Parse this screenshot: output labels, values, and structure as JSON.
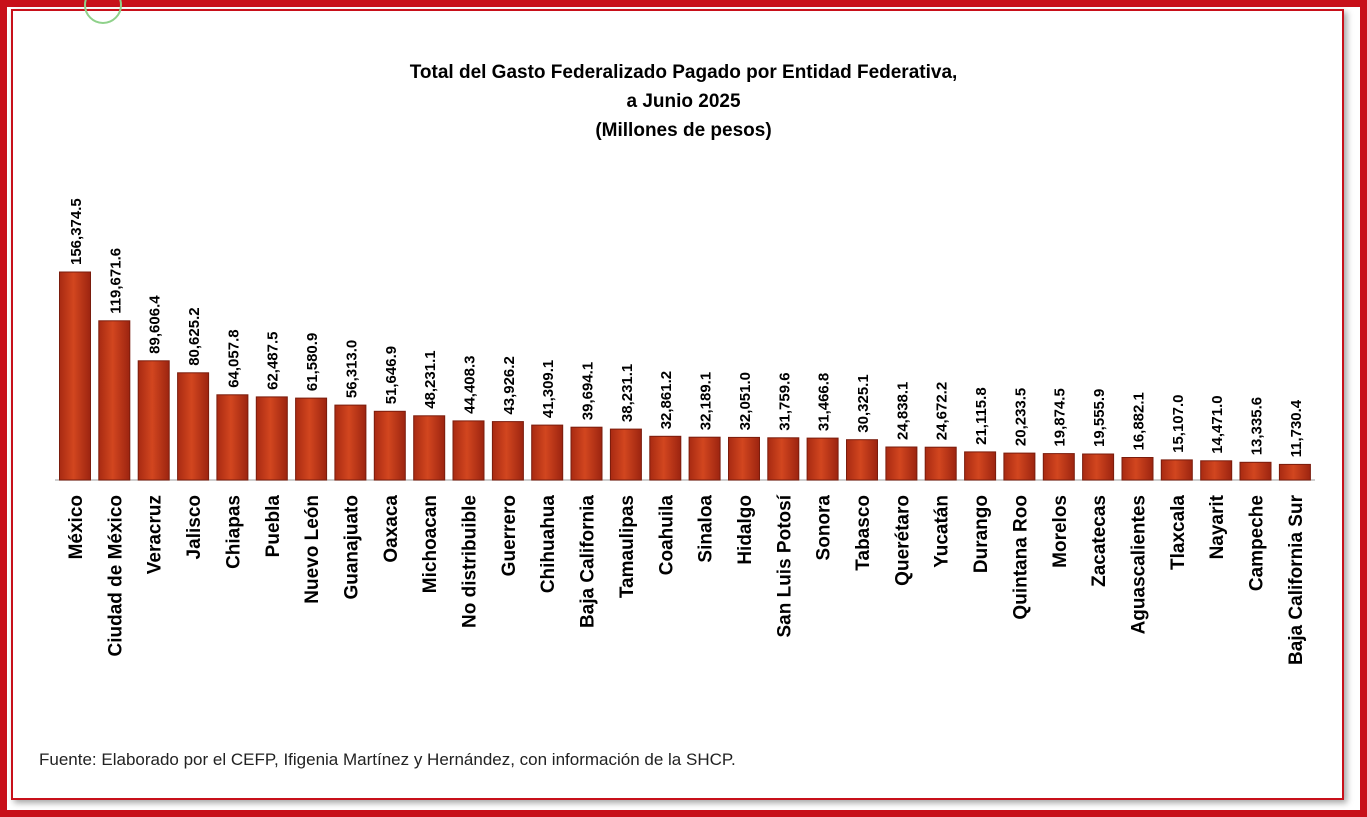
{
  "chart_data": {
    "type": "bar",
    "title": "Total del Gasto Federalizado Pagado por Entidad Federativa,",
    "subtitle": "a Junio 2025",
    "units": "(Millones de pesos)",
    "xlabel": "",
    "ylabel": "",
    "ylim": [
      0,
      156374.5
    ],
    "grid": false,
    "legend": "none",
    "categories": [
      "México",
      "Ciudad de México",
      "Veracruz",
      "Jalisco",
      "Chiapas",
      "Puebla",
      "Nuevo León",
      "Guanajuato",
      "Oaxaca",
      "Michoacan",
      "No distribuible",
      "Guerrero",
      "Chihuahua",
      "Baja California",
      "Tamaulipas",
      "Coahuila",
      "Sinaloa",
      "Hidalgo",
      "San Luis Potosí",
      "Sonora",
      "Tabasco",
      "Querétaro",
      "Yucatán",
      "Durango",
      "Quintana Roo",
      "Morelos",
      "Zacatecas",
      "Aguascalientes",
      "Tlaxcala",
      "Nayarit",
      "Campeche",
      "Baja California Sur"
    ],
    "values": [
      156374.5,
      119671.6,
      89606.4,
      80625.2,
      64057.8,
      62487.5,
      61580.9,
      56313.0,
      51646.9,
      48231.1,
      44408.3,
      43926.2,
      41309.1,
      39694.1,
      38231.1,
      32861.2,
      32189.1,
      32051.0,
      31759.6,
      31466.8,
      30325.1,
      24838.1,
      24672.2,
      21115.8,
      20233.5,
      19874.5,
      19555.9,
      16882.1,
      15107.0,
      14471.0,
      13335.6,
      11730.4
    ],
    "value_labels": [
      "156,374.5",
      "119,671.6",
      "89,606.4",
      "80,625.2",
      "64,057.8",
      "62,487.5",
      "61,580.9",
      "56,313.0",
      "51,646.9",
      "48,231.1",
      "44,408.3",
      "43,926.2",
      "41,309.1",
      "39,694.1",
      "38,231.1",
      "32,861.2",
      "32,189.1",
      "32,051.0",
      "31,759.6",
      "31,466.8",
      "30,325.1",
      "24,838.1",
      "24,672.2",
      "21,115.8",
      "20,233.5",
      "19,874.5",
      "19,555.9",
      "16,882.1",
      "15,107.0",
      "14,471.0",
      "13,335.6",
      "11,730.4"
    ],
    "bar_color": "#c0391b",
    "bar_edge_color": "#7a1c0c"
  },
  "frame": {
    "border_color": "#c8101a"
  },
  "footer": {
    "source": "Fuente: Elaborado por el CEFP, Ifigenia Martínez y Hernández, con información de la SHCP."
  }
}
